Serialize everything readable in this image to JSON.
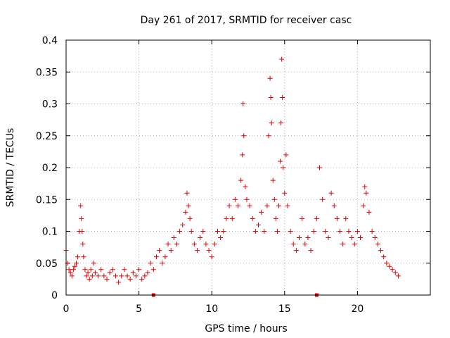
{
  "chart_data": {
    "type": "scatter",
    "title": "Day 261 of 2017, SRMTID for receiver casc",
    "xlabel": "GPS time / hours",
    "ylabel": "SRMTID / TECUs",
    "xlim": [
      0,
      25
    ],
    "ylim": [
      0,
      0.4
    ],
    "xticks": [
      0,
      5,
      10,
      15,
      20
    ],
    "xtick_labels": [
      "0",
      "5",
      "10",
      "15",
      "20"
    ],
    "yticks": [
      0,
      0.05,
      0.1,
      0.15,
      0.2,
      0.25,
      0.3,
      0.35,
      0.4
    ],
    "ytick_labels": [
      "0",
      "0.05",
      "0.1",
      "0.15",
      "0.2",
      "0.25",
      "0.3",
      "0.35",
      "0.4"
    ],
    "grid": true,
    "marker": "+",
    "color": "#e00000",
    "series": [
      {
        "name": "SRMTID",
        "x": [
          0.0,
          0.1,
          0.2,
          0.3,
          0.4,
          0.5,
          0.6,
          0.7,
          0.8,
          0.9,
          1.0,
          1.05,
          1.1,
          1.15,
          1.2,
          1.3,
          1.4,
          1.5,
          1.6,
          1.7,
          1.8,
          1.9,
          2.0,
          2.2,
          2.4,
          2.6,
          2.8,
          3.0,
          3.2,
          3.4,
          3.6,
          3.8,
          4.0,
          4.2,
          4.4,
          4.6,
          4.8,
          5.0,
          5.2,
          5.4,
          5.6,
          5.8,
          6.0,
          6.2,
          6.4,
          6.6,
          6.8,
          7.0,
          7.2,
          7.4,
          7.6,
          7.8,
          8.0,
          8.2,
          8.3,
          8.4,
          8.5,
          8.6,
          8.8,
          9.0,
          9.2,
          9.4,
          9.6,
          9.8,
          10.0,
          10.2,
          10.4,
          10.6,
          10.8,
          11.0,
          11.2,
          11.4,
          11.6,
          11.8,
          12.0,
          12.1,
          12.15,
          12.2,
          12.3,
          12.4,
          12.6,
          12.8,
          13.0,
          13.2,
          13.4,
          13.6,
          13.8,
          13.9,
          14.0,
          14.05,
          14.1,
          14.2,
          14.3,
          14.4,
          14.5,
          14.6,
          14.7,
          14.75,
          14.8,
          14.85,
          14.9,
          15.0,
          15.1,
          15.2,
          15.4,
          15.6,
          15.8,
          16.0,
          16.2,
          16.4,
          16.6,
          16.8,
          17.0,
          17.2,
          17.4,
          17.6,
          17.8,
          18.0,
          18.2,
          18.4,
          18.6,
          18.8,
          19.0,
          19.2,
          19.4,
          19.6,
          19.8,
          20.0,
          20.2,
          20.4,
          20.5,
          20.6,
          20.8,
          21.0,
          21.2,
          21.4,
          21.6,
          21.8,
          22.0,
          22.2,
          22.4,
          22.6,
          22.8
        ],
        "y": [
          0.07,
          0.05,
          0.04,
          0.035,
          0.03,
          0.04,
          0.045,
          0.05,
          0.06,
          0.1,
          0.14,
          0.12,
          0.1,
          0.08,
          0.06,
          0.04,
          0.03,
          0.035,
          0.025,
          0.04,
          0.03,
          0.05,
          0.035,
          0.03,
          0.04,
          0.03,
          0.025,
          0.035,
          0.04,
          0.03,
          0.02,
          0.03,
          0.04,
          0.03,
          0.025,
          0.035,
          0.03,
          0.04,
          0.025,
          0.03,
          0.035,
          0.05,
          0.04,
          0.06,
          0.07,
          0.05,
          0.06,
          0.08,
          0.07,
          0.09,
          0.08,
          0.1,
          0.11,
          0.13,
          0.16,
          0.14,
          0.12,
          0.1,
          0.08,
          0.07,
          0.09,
          0.1,
          0.08,
          0.07,
          0.06,
          0.08,
          0.1,
          0.09,
          0.1,
          0.12,
          0.14,
          0.12,
          0.15,
          0.14,
          0.18,
          0.22,
          0.3,
          0.25,
          0.17,
          0.15,
          0.14,
          0.12,
          0.1,
          0.11,
          0.13,
          0.1,
          0.14,
          0.25,
          0.34,
          0.31,
          0.27,
          0.18,
          0.15,
          0.12,
          0.1,
          0.14,
          0.21,
          0.27,
          0.37,
          0.31,
          0.2,
          0.16,
          0.22,
          0.14,
          0.1,
          0.08,
          0.07,
          0.09,
          0.12,
          0.08,
          0.09,
          0.07,
          0.1,
          0.12,
          0.2,
          0.15,
          0.1,
          0.09,
          0.16,
          0.14,
          0.12,
          0.1,
          0.08,
          0.12,
          0.1,
          0.09,
          0.08,
          0.1,
          0.09,
          0.14,
          0.17,
          0.16,
          0.13,
          0.1,
          0.09,
          0.08,
          0.07,
          0.06,
          0.05,
          0.045,
          0.04,
          0.035,
          0.03
        ]
      }
    ],
    "x_markers": [
      6.0,
      17.2
    ]
  }
}
